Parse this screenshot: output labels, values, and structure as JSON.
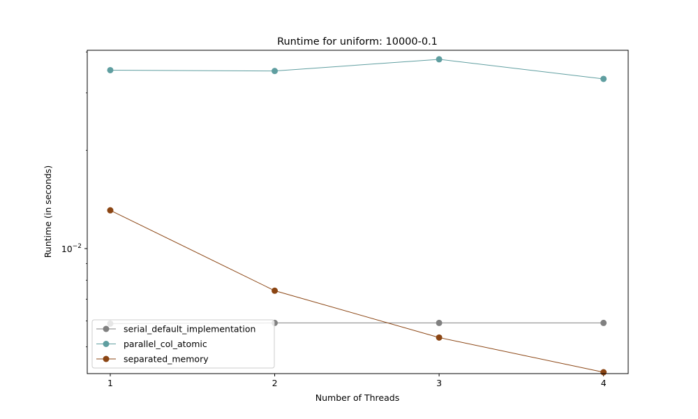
{
  "chart_data": {
    "type": "line",
    "title": "Runtime for uniform: 10000-0.1",
    "xlabel": "Number of Threads",
    "ylabel": "Runtime (in seconds)",
    "yscale": "log",
    "ytick_labels": [
      {
        "value": 0.01,
        "base": "10",
        "exp": "−2"
      }
    ],
    "xlim": [
      0.86,
      4.15
    ],
    "ylim": [
      0.00414,
      0.0405
    ],
    "grid": false,
    "legend_position": "lower-left",
    "x": [
      1,
      2,
      3,
      4
    ],
    "series": [
      {
        "name": "serial_default_implementation",
        "color": "#808080",
        "values": [
          0.00589,
          0.00592,
          0.00592,
          0.00592
        ]
      },
      {
        "name": "parallel_col_atomic",
        "color": "#5f9ea0",
        "values": [
          0.0352,
          0.035,
          0.038,
          0.0331
        ]
      },
      {
        "name": "separated_memory",
        "color": "#8b4513",
        "values": [
          0.0131,
          0.00743,
          0.00534,
          0.00418
        ]
      }
    ]
  }
}
